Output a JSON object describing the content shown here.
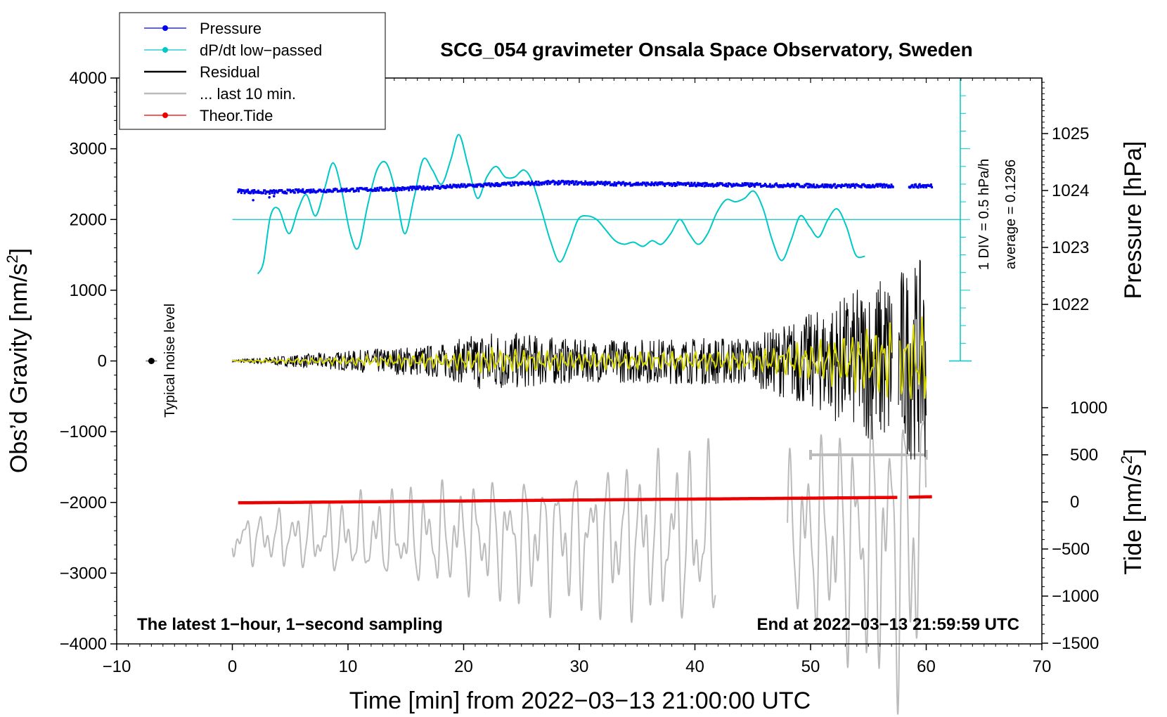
{
  "chart_data": {
    "type": "line",
    "title": "SCG_054 gravimeter Onsala Space Observatory, Sweden",
    "xlabel": "Time [min] from 2022−03−13 21:00:00 UTC",
    "ylabel_left_main": "Obs’d Gravity [nm/s",
    "ylabel_left_sup": "2",
    "ylabel_left_end": "]",
    "ylabel_right_pressure": "Pressure [hPa]",
    "ylabel_right_tide_main": "Tide [nm/s",
    "ylabel_right_tide_sup": "2",
    "ylabel_right_tide_end": "]",
    "xlim": [
      -10,
      70
    ],
    "ylim_gravity": [
      -4000,
      4000
    ],
    "pressure_range_hpa": [
      1021,
      1026
    ],
    "tide_range": [
      -1500,
      1500
    ],
    "x_ticks": [
      "−10",
      "0",
      "10",
      "20",
      "30",
      "40",
      "50",
      "60",
      "70"
    ],
    "y_ticks_gravity": [
      "4000",
      "3000",
      "2000",
      "1000",
      "0",
      "−1000",
      "−2000",
      "−3000",
      "−4000"
    ],
    "y_ticks_pressure": [
      "1025",
      "1024",
      "1023",
      "1022"
    ],
    "y_ticks_tide": [
      "1000",
      "500",
      "0",
      "−500",
      "−1000",
      "−1500"
    ],
    "legend": [
      {
        "label": "Pressure",
        "color": "#0000ee",
        "style": "line-dot"
      },
      {
        "label": "dP/dt low−passed",
        "color": "#00c8c8",
        "style": "line-dot"
      },
      {
        "label": "Residual",
        "color": "#000000",
        "style": "line"
      },
      {
        "label": "... last 10 min.",
        "color": "#bbbbbb",
        "style": "line"
      },
      {
        "label": "Theor.Tide",
        "color": "#ee0000",
        "style": "line-dot"
      }
    ],
    "annotations": {
      "noise_label": "Typical noise level",
      "dpdt_scale": "1 DIV = 0.5 hPa/h",
      "dpdt_average": "average = 0.1296",
      "bottom_left": "The latest 1−hour, 1−second sampling",
      "bottom_right": "End at 2022−03−13 21:59:59 UTC"
    },
    "series": [
      {
        "name": "Pressure",
        "unit": "hPa",
        "x": [
          0.5,
          3,
          6,
          10,
          15,
          20,
          25,
          28,
          33,
          38,
          43,
          48,
          52,
          57.2,
          58.5,
          60.5
        ],
        "values": [
          1023.99,
          1023.97,
          1023.99,
          1024.01,
          1024.03,
          1024.08,
          1024.12,
          1024.14,
          1024.12,
          1024.11,
          1024.1,
          1024.09,
          1024.08,
          1024.08,
          1024.08,
          1024.08
        ]
      },
      {
        "name": "dP/dt low-passed",
        "unit": "gravity-axis units",
        "x": [
          2.2,
          2.7,
          3.3,
          4.0,
          4.9,
          5.7,
          6.4,
          7.2,
          8.0,
          8.7,
          9.4,
          10.2,
          10.9,
          11.7,
          12.5,
          13.3,
          14.1,
          14.9,
          15.7,
          16.5,
          17.3,
          18.1,
          18.9,
          19.6,
          20.4,
          21.2,
          22.0,
          22.8,
          23.6,
          24.4,
          25.2,
          25.9,
          26.7,
          27.5,
          28.3,
          29.1,
          29.9,
          30.7,
          31.5,
          32.3,
          33.1,
          33.9,
          34.7,
          35.5,
          36.3,
          37.1,
          37.9,
          38.7,
          39.5,
          40.3,
          41.1,
          41.9,
          42.7,
          43.5,
          44.3,
          45.1,
          45.9,
          46.7,
          47.5,
          48.3,
          49.1,
          49.9,
          50.7,
          51.5,
          52.3,
          53.1,
          53.9,
          54.7
        ],
        "values": [
          1230,
          1400,
          2050,
          2150,
          1800,
          2150,
          2350,
          2050,
          2450,
          2800,
          2450,
          1800,
          1600,
          2200,
          2700,
          2800,
          2400,
          1800,
          2300,
          2850,
          2700,
          2500,
          2850,
          3200,
          2750,
          2300,
          2600,
          2750,
          2600,
          2600,
          2700,
          2550,
          2150,
          1700,
          1400,
          1650,
          2000,
          2050,
          2000,
          1850,
          1700,
          1650,
          1680,
          1620,
          1700,
          1650,
          1800,
          2000,
          1800,
          1650,
          1800,
          2100,
          2280,
          2250,
          2300,
          2400,
          2150,
          1700,
          1420,
          1700,
          2050,
          1900,
          1750,
          2000,
          2150,
          1900,
          1500,
          1480
        ]
      },
      {
        "name": "Residual",
        "unit": "nm/s2",
        "x_range": [
          0,
          60
        ],
        "description_amplitude": [
          [
            0,
            20
          ],
          [
            18.5,
            250
          ],
          [
            22,
            450
          ],
          [
            30,
            300
          ],
          [
            45,
            350
          ],
          [
            51,
            750
          ],
          [
            57.5,
            1350
          ],
          [
            60,
            1450
          ]
        ]
      },
      {
        "name": "... last 10 min.",
        "unit": "gravity-axis units",
        "x_range": [
          0,
          42,
          48,
          60
        ],
        "baseline": -2500
      },
      {
        "name": "Theor.Tide",
        "unit": "nm/s2",
        "x": [
          0.5,
          10,
          20,
          30,
          40,
          50,
          57.5,
          58.5,
          60.5
        ],
        "values": [
          -10,
          0,
          10,
          20,
          30,
          40,
          48,
          50,
          55
        ]
      }
    ],
    "noise_level": {
      "x": -7,
      "y": 0
    },
    "dpdt_zero_level": 2000,
    "last10_range_bar": {
      "x_start": 50,
      "x_end": 60,
      "tide": 500
    }
  }
}
